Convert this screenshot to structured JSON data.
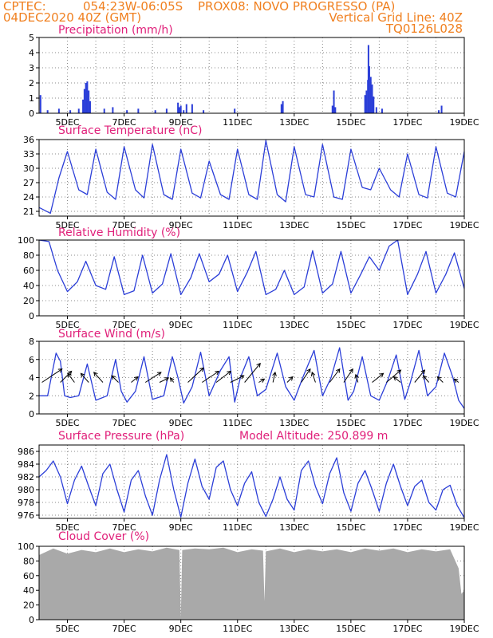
{
  "header": {
    "left_line1": "CPTEC:",
    "coords": "054:23W-06:05S",
    "station": "PROX08: NOVO PROGRESSO (PA)",
    "date_line": "04DEC2020 40Z (GMT)",
    "grid_note": "Vertical Grid Line: 40Z",
    "code": "TQ0126L028"
  },
  "colors": {
    "header": "#f08020",
    "title": "#e0207a",
    "line": "#2b3ed8",
    "cloud": "#a9a9a9",
    "grid": "#888888"
  },
  "x_tick_labels": [
    "5DEC",
    "7DEC",
    "9DEC",
    "11DEC",
    "13DEC",
    "15DEC",
    "17DEC",
    "19DEC"
  ],
  "model_altitude": "Model Altitude: 250.899 m",
  "chart_data": [
    {
      "type": "bar",
      "title": "Precipitation (mm/h)",
      "ylim": [
        0,
        5
      ],
      "yticks": [
        0,
        1,
        2,
        3,
        4,
        5
      ],
      "x_unit": "day of December 2020",
      "xlim": [
        4.0,
        19.0
      ],
      "x": [
        4.05,
        4.3,
        4.7,
        5.1,
        5.4,
        5.55,
        5.6,
        5.65,
        5.7,
        5.75,
        5.8,
        6.3,
        6.6,
        7.1,
        7.5,
        8.1,
        8.5,
        8.9,
        8.95,
        9.0,
        9.1,
        9.2,
        9.4,
        9.8,
        10.9,
        12.55,
        12.6,
        14.35,
        14.4,
        14.45,
        15.5,
        15.55,
        15.6,
        15.62,
        15.65,
        15.7,
        15.75,
        15.8,
        15.9,
        16.1,
        18.1,
        18.2
      ],
      "values": [
        1.2,
        0.2,
        0.3,
        0.2,
        0.3,
        0.9,
        1.6,
        2.0,
        2.1,
        1.5,
        0.8,
        0.3,
        0.4,
        0.2,
        0.3,
        0.2,
        0.3,
        0.7,
        0.4,
        0.5,
        0.2,
        0.6,
        0.6,
        0.2,
        0.3,
        0.6,
        0.8,
        0.5,
        1.5,
        0.4,
        1.2,
        1.5,
        2.2,
        4.5,
        3.1,
        2.4,
        1.9,
        1.1,
        0.4,
        0.3,
        0.2,
        0.5
      ]
    },
    {
      "type": "line",
      "title": "Surface Temperature (nC)",
      "ylim": [
        20,
        36
      ],
      "yticks": [
        21,
        24,
        27,
        30,
        33,
        36
      ],
      "x_unit": "day of December 2020",
      "x": [
        4.0,
        4.4,
        4.7,
        5.0,
        5.4,
        5.7,
        6.0,
        6.4,
        6.7,
        7.0,
        7.4,
        7.7,
        8.0,
        8.4,
        8.7,
        9.0,
        9.4,
        9.7,
        10.0,
        10.4,
        10.7,
        11.0,
        11.4,
        11.7,
        12.0,
        12.4,
        12.7,
        13.0,
        13.4,
        13.7,
        14.0,
        14.4,
        14.7,
        15.0,
        15.4,
        15.7,
        16.0,
        16.4,
        16.7,
        17.0,
        17.4,
        17.7,
        18.0,
        18.4,
        18.7,
        19.0
      ],
      "values": [
        21.8,
        20.6,
        28.0,
        33.5,
        25.5,
        24.5,
        34.0,
        25.0,
        23.5,
        34.5,
        25.5,
        23.8,
        35.0,
        24.5,
        23.5,
        34.0,
        24.8,
        23.8,
        31.5,
        24.5,
        23.5,
        34.0,
        24.5,
        23.5,
        35.8,
        24.5,
        23.0,
        34.5,
        24.5,
        24.0,
        35.0,
        24.0,
        23.5,
        34.0,
        26.0,
        25.5,
        30.0,
        25.5,
        24.0,
        33.0,
        24.5,
        23.8,
        34.5,
        24.8,
        24.0,
        33.5
      ]
    },
    {
      "type": "line",
      "title": "Relative Humidity (%)",
      "ylim": [
        0,
        100
      ],
      "yticks": [
        0,
        20,
        40,
        60,
        80,
        100
      ],
      "x_unit": "day of December 2020",
      "x": [
        4.0,
        4.35,
        4.65,
        5.0,
        5.35,
        5.65,
        6.0,
        6.35,
        6.65,
        7.0,
        7.35,
        7.65,
        8.0,
        8.35,
        8.65,
        9.0,
        9.35,
        9.65,
        10.0,
        10.35,
        10.65,
        11.0,
        11.35,
        11.65,
        12.0,
        12.35,
        12.65,
        13.0,
        13.35,
        13.65,
        14.0,
        14.35,
        14.65,
        15.0,
        15.35,
        15.65,
        16.0,
        16.35,
        16.65,
        17.0,
        17.35,
        17.65,
        18.0,
        18.35,
        18.65,
        19.0
      ],
      "values": [
        100,
        98,
        60,
        32,
        45,
        72,
        40,
        35,
        78,
        28,
        33,
        80,
        30,
        42,
        82,
        28,
        50,
        82,
        45,
        55,
        80,
        32,
        58,
        85,
        28,
        35,
        60,
        28,
        38,
        86,
        30,
        42,
        85,
        30,
        55,
        78,
        60,
        92,
        100,
        28,
        55,
        85,
        30,
        55,
        83,
        36
      ]
    },
    {
      "type": "line",
      "title": "Surface Wind (m/s)",
      "ylim": [
        0,
        8
      ],
      "yticks": [
        0,
        2,
        4,
        6,
        8
      ],
      "x_unit": "day of December 2020",
      "x": [
        4.0,
        4.3,
        4.6,
        4.75,
        4.9,
        5.1,
        5.4,
        5.7,
        6.0,
        6.4,
        6.7,
        6.9,
        7.1,
        7.4,
        7.7,
        8.0,
        8.4,
        8.7,
        8.9,
        9.1,
        9.4,
        9.7,
        10.0,
        10.4,
        10.7,
        10.9,
        11.1,
        11.4,
        11.7,
        12.0,
        12.4,
        12.7,
        13.0,
        13.3,
        13.7,
        14.0,
        14.3,
        14.6,
        14.9,
        15.1,
        15.4,
        15.7,
        16.0,
        16.3,
        16.6,
        16.9,
        17.1,
        17.4,
        17.7,
        18.0,
        18.3,
        18.6,
        18.8,
        19.0
      ],
      "values": [
        2.0,
        2.0,
        6.7,
        5.8,
        2.0,
        1.8,
        2.0,
        5.5,
        1.5,
        2.0,
        6.0,
        2.5,
        1.3,
        2.5,
        6.3,
        1.6,
        2.0,
        6.3,
        4.0,
        1.2,
        3.0,
        6.8,
        2.0,
        4.8,
        6.3,
        1.3,
        4.0,
        6.3,
        2.0,
        2.7,
        6.7,
        3.0,
        1.5,
        4.0,
        7.0,
        2.0,
        4.0,
        7.3,
        1.5,
        2.5,
        6.3,
        2.0,
        1.5,
        3.7,
        6.5,
        1.6,
        3.5,
        7.0,
        2.0,
        3.0,
        6.7,
        4.0,
        1.5,
        0.6
      ],
      "wind_arrows": [
        {
          "x": 4.1,
          "u": 1.8,
          "v": 1.2
        },
        {
          "x": 4.75,
          "u": 1.0,
          "v": 1.0
        },
        {
          "x": 5.25,
          "u": -0.6,
          "v": 0.8
        },
        {
          "x": 5.75,
          "u": -0.7,
          "v": 0.8
        },
        {
          "x": 6.25,
          "u": -0.8,
          "v": 0.9
        },
        {
          "x": 6.8,
          "u": -0.6,
          "v": 0.6
        },
        {
          "x": 7.25,
          "u": 0.6,
          "v": 0.5
        },
        {
          "x": 7.75,
          "u": 1.4,
          "v": 0.9
        },
        {
          "x": 8.25,
          "u": 0.8,
          "v": 0.4
        },
        {
          "x": 8.75,
          "u": -0.3,
          "v": 0.4
        },
        {
          "x": 9.25,
          "u": 1.4,
          "v": 1.3
        },
        {
          "x": 9.75,
          "u": 1.5,
          "v": 1.0
        },
        {
          "x": 10.25,
          "u": 1.3,
          "v": 1.0
        },
        {
          "x": 10.75,
          "u": 1.2,
          "v": 0.6
        },
        {
          "x": 11.25,
          "u": 1.4,
          "v": 1.7
        },
        {
          "x": 11.75,
          "u": 0.5,
          "v": 0.3
        },
        {
          "x": 12.25,
          "u": 0.2,
          "v": 0.9
        },
        {
          "x": 12.75,
          "u": 0.5,
          "v": 0.5
        },
        {
          "x": 13.25,
          "u": 0.8,
          "v": 1.2
        },
        {
          "x": 13.75,
          "u": -0.3,
          "v": 0.9
        },
        {
          "x": 14.25,
          "u": 0.9,
          "v": 1.2
        },
        {
          "x": 14.75,
          "u": 0.8,
          "v": 1.2
        },
        {
          "x": 15.25,
          "u": -0.2,
          "v": 0.7
        },
        {
          "x": 15.75,
          "u": 1.0,
          "v": 0.8
        },
        {
          "x": 16.25,
          "u": 1.3,
          "v": 1.1
        },
        {
          "x": 16.75,
          "u": -0.6,
          "v": 0.5
        },
        {
          "x": 17.25,
          "u": 0.9,
          "v": 1.1
        },
        {
          "x": 17.75,
          "u": -0.5,
          "v": 0.6
        },
        {
          "x": 18.25,
          "u": -0.5,
          "v": 0.5
        },
        {
          "x": 18.8,
          "u": -0.4,
          "v": 0.3
        }
      ]
    },
    {
      "type": "line",
      "title": "Surface Pressure (hPa)",
      "ylim": [
        975.5,
        987
      ],
      "yticks": [
        976,
        978,
        980,
        982,
        984,
        986
      ],
      "x_unit": "day of December 2020",
      "x": [
        4.0,
        4.25,
        4.5,
        4.75,
        5.0,
        5.25,
        5.5,
        5.75,
        6.0,
        6.25,
        6.5,
        6.75,
        7.0,
        7.25,
        7.5,
        7.75,
        8.0,
        8.25,
        8.5,
        8.75,
        9.0,
        9.25,
        9.5,
        9.75,
        10.0,
        10.25,
        10.5,
        10.75,
        11.0,
        11.25,
        11.5,
        11.75,
        12.0,
        12.25,
        12.5,
        12.75,
        13.0,
        13.25,
        13.5,
        13.75,
        14.0,
        14.25,
        14.5,
        14.75,
        15.0,
        15.25,
        15.5,
        15.75,
        16.0,
        16.25,
        16.5,
        16.75,
        17.0,
        17.25,
        17.5,
        17.75,
        18.0,
        18.25,
        18.5,
        18.75,
        19.0
      ],
      "values": [
        982.0,
        983.0,
        984.5,
        982.0,
        977.8,
        981.5,
        983.7,
        980.5,
        977.5,
        982.5,
        984.0,
        980.0,
        976.5,
        981.5,
        983.0,
        979.0,
        976.0,
        981.5,
        985.5,
        980.0,
        975.7,
        981.0,
        984.8,
        980.5,
        978.5,
        983.5,
        984.5,
        980.0,
        977.5,
        981.0,
        982.8,
        978.0,
        975.8,
        978.5,
        982.0,
        978.5,
        976.8,
        983.0,
        984.5,
        980.5,
        977.8,
        982.5,
        985.0,
        979.5,
        976.6,
        981.0,
        983.0,
        980.0,
        976.6,
        981.0,
        984.0,
        980.5,
        977.5,
        980.5,
        981.5,
        978.0,
        976.8,
        980.0,
        980.7,
        977.5,
        975.6
      ]
    },
    {
      "type": "area",
      "title": "Cloud Cover (%)",
      "ylim": [
        0,
        100
      ],
      "yticks": [
        0,
        20,
        40,
        60,
        80,
        100
      ],
      "x_unit": "day of December 2020",
      "x": [
        4.0,
        4.5,
        5.0,
        5.5,
        6.0,
        6.5,
        7.0,
        7.5,
        8.0,
        8.5,
        8.95,
        9.0,
        9.05,
        9.5,
        10.0,
        10.5,
        11.0,
        11.5,
        11.9,
        11.95,
        12.0,
        12.5,
        13.0,
        13.5,
        14.0,
        14.5,
        15.0,
        15.5,
        16.0,
        16.5,
        17.0,
        17.5,
        18.0,
        18.5,
        18.8,
        18.9,
        19.0
      ],
      "values": [
        88,
        97,
        90,
        95,
        92,
        97,
        92,
        96,
        93,
        98,
        95,
        2,
        95,
        97,
        96,
        98,
        92,
        96,
        94,
        25,
        93,
        97,
        92,
        96,
        93,
        96,
        92,
        97,
        94,
        97,
        92,
        96,
        93,
        96,
        70,
        35,
        40
      ]
    }
  ]
}
